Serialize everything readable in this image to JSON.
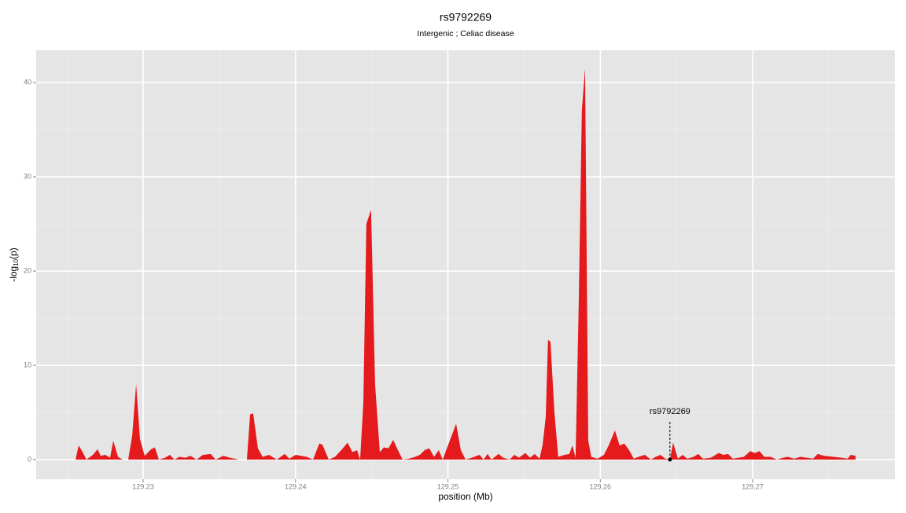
{
  "chart_data": {
    "type": "area",
    "title": "rs9792269",
    "subtitle": "Intergenic ; Celiac disease",
    "xlabel": "position (Mb)",
    "ylabel": {
      "text": "-log",
      "sub": "10",
      "tail": "(p)"
    },
    "color": "#e41a1c",
    "x": [
      129.22556,
      129.22577,
      129.22603,
      129.22628,
      129.2267,
      129.22701,
      129.22721,
      129.22752,
      129.22783,
      129.22804,
      129.22835,
      129.22866,
      129.22902,
      129.22928,
      129.22954,
      129.22979,
      129.2301,
      129.23052,
      129.23077,
      129.23103,
      129.23144,
      129.23175,
      129.23206,
      129.23237,
      129.23279,
      129.2331,
      129.23351,
      129.23392,
      129.23444,
      129.23475,
      129.23526,
      129.23568,
      129.2363,
      129.23681,
      129.23702,
      129.23722,
      129.23753,
      129.23784,
      129.23826,
      129.23877,
      129.23929,
      129.2396,
      129.24001,
      129.24073,
      129.24115,
      129.24156,
      129.24176,
      129.24218,
      129.24259,
      129.243,
      129.24342,
      129.24373,
      129.24404,
      129.24424,
      129.24445,
      129.24465,
      129.24496,
      129.24522,
      129.24553,
      129.24579,
      129.2461,
      129.24641,
      129.24672,
      129.24703,
      129.24744,
      129.24785,
      129.24816,
      129.24847,
      129.24878,
      129.24909,
      129.2494,
      129.24966,
      129.25012,
      129.25054,
      129.25085,
      129.25116,
      129.25157,
      129.25208,
      129.25234,
      129.2526,
      129.25286,
      129.25332,
      129.25363,
      129.25405,
      129.25436,
      129.25466,
      129.25508,
      129.25539,
      129.2557,
      129.25601,
      129.25621,
      129.25642,
      129.25657,
      129.25673,
      129.25699,
      129.25724,
      129.25766,
      129.25797,
      129.25817,
      129.25838,
      129.25859,
      129.25879,
      129.259,
      129.25921,
      129.25941,
      129.25982,
      129.26024,
      129.26055,
      129.26096,
      129.26127,
      129.26158,
      129.26189,
      129.2622,
      129.26251,
      129.26292,
      129.26333,
      129.26364,
      129.26395,
      129.26426,
      129.26457,
      129.26478,
      129.26509,
      129.2654,
      129.26571,
      129.26612,
      129.26643,
      129.26674,
      129.26726,
      129.26777,
      129.26808,
      129.26839,
      129.2687,
      129.26942,
      129.26984,
      129.27014,
      129.27045,
      129.27076,
      129.27118,
      129.27159,
      129.272,
      129.27231,
      129.27272,
      129.27314,
      129.27355,
      129.27396,
      129.27427,
      129.27469,
      129.2753,
      129.27582,
      129.27623,
      129.27644,
      129.27675
    ],
    "values": [
      0,
      1.5,
      0.8,
      0,
      0.5,
      1.1,
      0.4,
      0.5,
      0.2,
      2,
      0.3,
      0,
      0,
      2.5,
      8,
      2.2,
      0.4,
      1.1,
      1.3,
      0,
      0.2,
      0.5,
      0,
      0.3,
      0.2,
      0.4,
      0,
      0.5,
      0.6,
      0,
      0.4,
      0.2,
      0,
      0,
      4.8,
      4.9,
      1.2,
      0.3,
      0.5,
      0,
      0.6,
      0.1,
      0.5,
      0.3,
      0,
      1.7,
      1.6,
      0,
      0.3,
      1,
      1.8,
      0.8,
      1,
      0,
      6,
      25,
      26.5,
      8,
      0.8,
      1.3,
      1.2,
      2.1,
      1,
      0,
      0.1,
      0.3,
      0.5,
      1,
      1.2,
      0.3,
      1,
      0,
      2,
      3.8,
      1,
      0,
      0.2,
      0.5,
      0,
      0.6,
      0,
      0.6,
      0.2,
      0,
      0.5,
      0.2,
      0.7,
      0.2,
      0.6,
      0.1,
      1.5,
      4.5,
      12.7,
      12.5,
      5,
      0.3,
      0.5,
      0.6,
      1.5,
      0.2,
      17,
      37,
      41.5,
      2,
      0.3,
      0.1,
      0.5,
      1.5,
      3.1,
      1.5,
      1.7,
      1,
      0.1,
      0.3,
      0.5,
      0,
      0.3,
      0.5,
      0.1,
      0,
      1.8,
      0.1,
      0.5,
      0.1,
      0.3,
      0.6,
      0.1,
      0.2,
      0.7,
      0.5,
      0.6,
      0.1,
      0.3,
      0.9,
      0.7,
      0.9,
      0.3,
      0.3,
      0,
      0.2,
      0.3,
      0.1,
      0.3,
      0.2,
      0.1,
      0.6,
      0.4,
      0.3,
      0.2,
      0.1,
      0.5,
      0.4
    ],
    "annotation": {
      "text": "rs9792269",
      "x": 129.26457,
      "y": 0
    },
    "xlim": [
      129.22298,
      129.27934
    ],
    "ylim": [
      -2.08,
      43.42
    ],
    "xticks": [
      129.23,
      129.24,
      129.25,
      129.26,
      129.27
    ],
    "yticks": [
      0,
      10,
      20,
      30,
      40
    ],
    "minor_xticks": [
      129.225,
      129.235,
      129.245,
      129.255,
      129.265,
      129.275
    ],
    "minor_yticks": [
      5,
      15,
      25,
      35
    ],
    "grid": true
  }
}
